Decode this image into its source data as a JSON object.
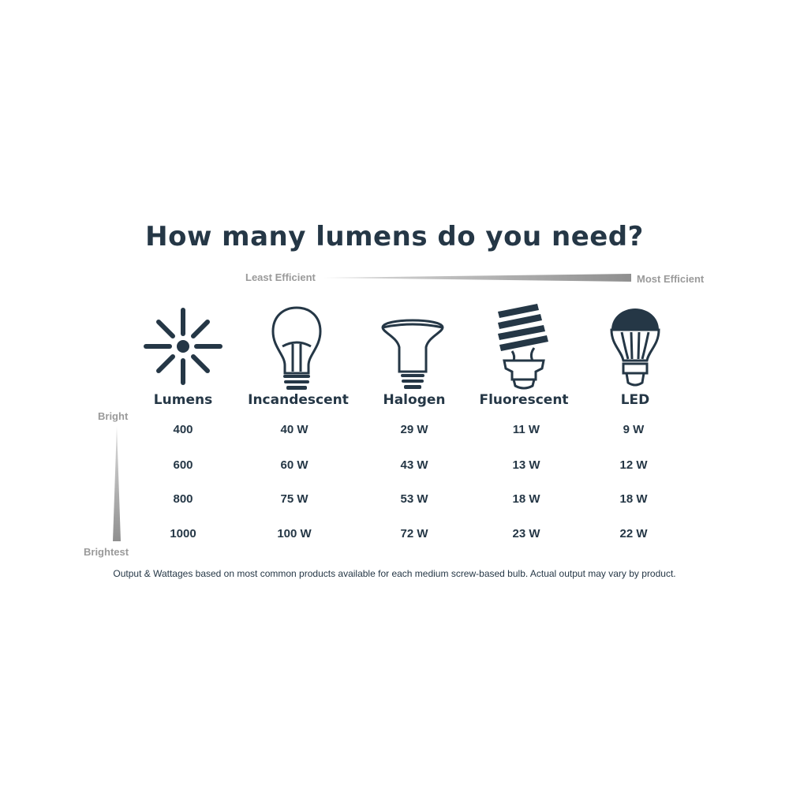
{
  "title": "How many lumens do you need?",
  "efficiency_scale": {
    "left_label": "Least Efficient",
    "right_label": "Most Efficient"
  },
  "brightness_scale": {
    "top_label": "Bright",
    "bottom_label": "Brightest"
  },
  "colors": {
    "text": "#253746",
    "scale": "#9a9a9a"
  },
  "chart_data": {
    "type": "table",
    "title": "How many lumens do you need?",
    "columns": [
      {
        "name": "Lumens",
        "icon": "light-burst-icon"
      },
      {
        "name": "Incandescent",
        "icon": "incandescent-bulb-icon"
      },
      {
        "name": "Halogen",
        "icon": "halogen-bulb-icon"
      },
      {
        "name": "Fluorescent",
        "icon": "cfl-bulb-icon"
      },
      {
        "name": "LED",
        "icon": "led-bulb-icon"
      }
    ],
    "rows": [
      [
        "400",
        "40 W",
        "29 W",
        "11 W",
        "9 W"
      ],
      [
        "600",
        "60 W",
        "43 W",
        "13 W",
        "12 W"
      ],
      [
        "800",
        "75 W",
        "53 W",
        "18 W",
        "18 W"
      ],
      [
        "1000",
        "100 W",
        "72 W",
        "23 W",
        "22 W"
      ]
    ]
  },
  "footer": "Output & Wattages based on most common products available for each medium screw-based bulb. Actual output may vary by product."
}
